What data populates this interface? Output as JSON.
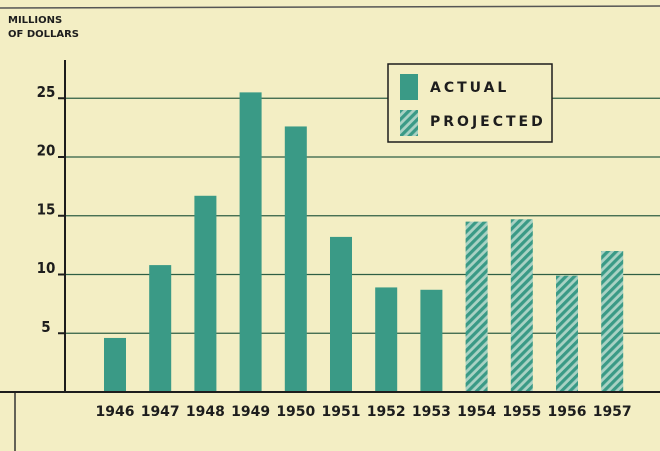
{
  "chart_data": {
    "type": "bar",
    "y_label": [
      "MILLIONS",
      "OF DOLLARS"
    ],
    "categories": [
      "1946",
      "1947",
      "1948",
      "1949",
      "1950",
      "1951",
      "1952",
      "1953",
      "1954",
      "1955",
      "1956",
      "1957"
    ],
    "series": [
      {
        "name": "ACTUAL",
        "color": "#3a9a86",
        "pattern": "solid",
        "values": [
          4.6,
          10.8,
          16.7,
          25.5,
          22.6,
          13.2,
          8.9,
          8.7,
          null,
          null,
          null,
          null
        ]
      },
      {
        "name": "PROJECTED",
        "color": "#3a9a86",
        "pattern": "hatched",
        "values": [
          null,
          null,
          null,
          null,
          null,
          null,
          null,
          null,
          14.5,
          14.7,
          9.9,
          12.0
        ]
      }
    ],
    "ylim": [
      0,
      28
    ],
    "yticks": [
      5,
      10,
      15,
      20,
      25
    ],
    "grid": true,
    "legend": "top-right"
  }
}
